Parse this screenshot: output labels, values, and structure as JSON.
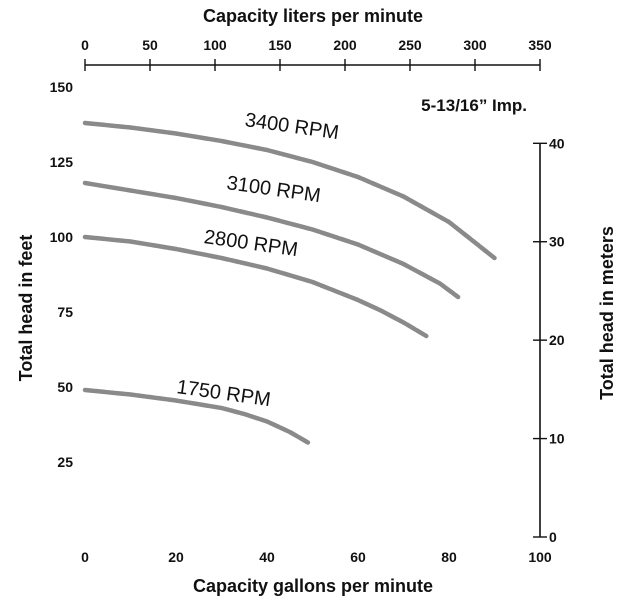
{
  "chart_data": {
    "type": "line",
    "top_title": "Capacity liters per minute",
    "xlabel": "Capacity gallons per minute",
    "ylabel_left": "Total head in feet",
    "ylabel_right": "Total head in meters",
    "annotation": "5-13/16” Imp.",
    "x_ticks": [
      "0",
      "20",
      "40",
      "60",
      "80",
      "100"
    ],
    "y_ticks": [
      "25",
      "50",
      "75",
      "100",
      "125",
      "150"
    ],
    "top_ticks": [
      "0",
      "50",
      "100",
      "150",
      "200",
      "250",
      "300",
      "350"
    ],
    "right_ticks": [
      "0",
      "10",
      "20",
      "30",
      "40"
    ],
    "xlim": [
      0,
      100
    ],
    "ylim": [
      0,
      150
    ],
    "top_lim": [
      0,
      350
    ],
    "right_lim": [
      0,
      45.72
    ],
    "grid": false,
    "series": [
      {
        "name": "3400 RPM",
        "x": [
          0,
          10,
          20,
          30,
          40,
          50,
          60,
          70,
          80,
          85,
          90
        ],
        "y": [
          138,
          136.5,
          134.5,
          132,
          129,
          125,
          120,
          113.5,
          105,
          99,
          93
        ]
      },
      {
        "name": "3100 RPM",
        "x": [
          0,
          10,
          20,
          30,
          40,
          50,
          60,
          70,
          78,
          82
        ],
        "y": [
          118,
          115.5,
          113,
          110,
          106.5,
          102.5,
          97.5,
          91,
          84.5,
          80
        ]
      },
      {
        "name": "2800 RPM",
        "x": [
          0,
          10,
          20,
          30,
          40,
          50,
          60,
          65,
          70,
          75
        ],
        "y": [
          100,
          98.5,
          96,
          93,
          89.5,
          85,
          79,
          75.5,
          71.5,
          67
        ]
      },
      {
        "name": "1750 RPM",
        "x": [
          0,
          10,
          20,
          30,
          35,
          40,
          45,
          49
        ],
        "y": [
          49,
          47.5,
          45.5,
          43,
          41,
          38.5,
          35,
          31.5
        ]
      }
    ]
  }
}
